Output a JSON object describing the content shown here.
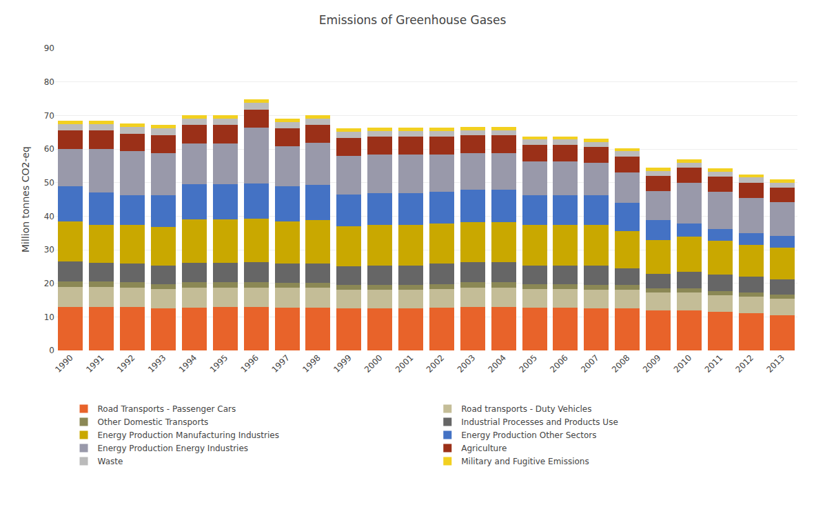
{
  "chart_data": {
    "type": "bar",
    "title": "Emissions of Greenhouse Gases",
    "ylabel": "Million tonnes CO2-eq",
    "categories": [
      1990,
      1991,
      1992,
      1993,
      1994,
      1995,
      1996,
      1997,
      1998,
      1999,
      2000,
      2001,
      2002,
      2003,
      2004,
      2005,
      2006,
      2007,
      2008,
      2009,
      2010,
      2011,
      2012,
      2013
    ],
    "series": [
      {
        "name": "Road Transports - Passenger Cars",
        "color": "#E8632A",
        "values": [
          13.0,
          13.0,
          13.0,
          12.5,
          12.8,
          13.0,
          13.0,
          12.8,
          12.8,
          12.5,
          12.5,
          12.5,
          12.7,
          13.0,
          13.0,
          12.8,
          12.8,
          12.5,
          12.5,
          12.0,
          12.0,
          11.5,
          11.0,
          10.5
        ]
      },
      {
        "name": "Road transports - Duty Vehicles",
        "color": "#C4BD97",
        "values": [
          6.0,
          6.0,
          5.8,
          5.8,
          6.0,
          5.8,
          5.8,
          5.8,
          5.8,
          5.5,
          5.5,
          5.5,
          5.6,
          5.8,
          5.8,
          5.5,
          5.5,
          5.5,
          5.5,
          5.2,
          5.2,
          5.0,
          5.0,
          5.0
        ]
      },
      {
        "name": "Other Domestic Transports",
        "color": "#8B8855",
        "values": [
          1.5,
          1.5,
          1.5,
          1.5,
          1.5,
          1.5,
          1.5,
          1.5,
          1.5,
          1.5,
          1.5,
          1.5,
          1.5,
          1.5,
          1.5,
          1.5,
          1.5,
          1.5,
          1.5,
          1.2,
          1.2,
          1.2,
          1.2,
          1.2
        ]
      },
      {
        "name": "Industrial Processes and Products Use",
        "color": "#666666",
        "values": [
          6.0,
          5.5,
          5.5,
          5.5,
          5.8,
          5.8,
          6.0,
          5.8,
          5.8,
          5.5,
          5.8,
          5.8,
          6.0,
          6.0,
          6.0,
          5.5,
          5.5,
          5.8,
          5.0,
          4.5,
          5.0,
          5.0,
          4.8,
          4.5
        ]
      },
      {
        "name": "Energy Production Manufacturing Industries",
        "color": "#C9A800",
        "values": [
          12.0,
          11.5,
          11.5,
          11.5,
          13.0,
          13.0,
          13.0,
          12.5,
          13.0,
          12.0,
          12.0,
          12.0,
          12.0,
          12.0,
          12.0,
          12.0,
          12.0,
          12.0,
          11.0,
          10.0,
          10.5,
          10.0,
          9.5,
          9.5
        ]
      },
      {
        "name": "Energy Production Other Sectors",
        "color": "#4472C4",
        "values": [
          10.5,
          9.5,
          9.0,
          9.5,
          10.5,
          10.5,
          10.5,
          10.5,
          10.5,
          9.5,
          9.5,
          9.5,
          9.5,
          9.5,
          9.5,
          9.0,
          9.0,
          9.0,
          8.5,
          6.0,
          4.0,
          3.5,
          3.5,
          3.5
        ]
      },
      {
        "name": "Energy Production Energy Industries",
        "color": "#9999AA",
        "values": [
          11.0,
          13.0,
          13.0,
          12.5,
          12.0,
          12.0,
          16.5,
          12.0,
          12.5,
          11.5,
          11.5,
          11.5,
          11.0,
          11.0,
          11.0,
          10.0,
          10.0,
          9.5,
          9.0,
          8.5,
          12.0,
          11.0,
          10.5,
          10.0
        ]
      },
      {
        "name": "Agriculture",
        "color": "#9B3018",
        "values": [
          5.5,
          5.5,
          5.3,
          5.3,
          5.5,
          5.5,
          5.5,
          5.3,
          5.3,
          5.3,
          5.3,
          5.3,
          5.3,
          5.3,
          5.3,
          5.0,
          5.0,
          4.8,
          4.8,
          4.5,
          4.5,
          4.5,
          4.5,
          4.3
        ]
      },
      {
        "name": "Waste",
        "color": "#BBBBBB",
        "values": [
          2.0,
          2.0,
          2.0,
          2.0,
          2.0,
          2.0,
          2.0,
          1.8,
          1.8,
          1.8,
          1.8,
          1.8,
          1.8,
          1.5,
          1.5,
          1.5,
          1.5,
          1.5,
          1.5,
          1.5,
          1.5,
          1.5,
          1.5,
          1.5
        ]
      },
      {
        "name": "Military and Fugitive Emissions",
        "color": "#F2D020",
        "values": [
          1.0,
          1.0,
          1.0,
          1.0,
          1.0,
          1.0,
          1.0,
          1.0,
          1.0,
          1.0,
          1.0,
          1.0,
          1.0,
          1.0,
          1.0,
          1.0,
          1.0,
          1.0,
          1.0,
          1.0,
          1.0,
          1.0,
          1.0,
          1.0
        ]
      }
    ],
    "ylim": [
      0,
      90
    ],
    "yticks": [
      0,
      10,
      20,
      30,
      40,
      50,
      60,
      70,
      80,
      90
    ],
    "grid": true,
    "stacked": true,
    "legend": "bottom"
  }
}
